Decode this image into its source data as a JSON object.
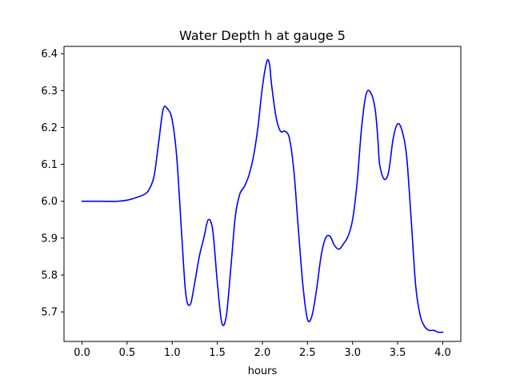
{
  "chart_data": {
    "type": "line",
    "title": "Water Depth h at gauge 5",
    "xlabel": "hours",
    "ylabel": "",
    "xlim": [
      -0.2,
      4.2
    ],
    "ylim": [
      5.62,
      6.42
    ],
    "xticks": [
      0.0,
      0.5,
      1.0,
      1.5,
      2.0,
      2.5,
      3.0,
      3.5,
      4.0
    ],
    "xtick_labels": [
      "0.0",
      "0.5",
      "1.0",
      "1.5",
      "2.0",
      "2.5",
      "3.0",
      "3.5",
      "4.0"
    ],
    "yticks": [
      5.7,
      5.8,
      5.9,
      6.0,
      6.1,
      6.2,
      6.3,
      6.4
    ],
    "ytick_labels": [
      "5.7",
      "5.8",
      "5.9",
      "6.0",
      "6.1",
      "6.2",
      "6.3",
      "6.4"
    ],
    "grid": false,
    "series": [
      {
        "color": "#0000ff",
        "x": [
          0.0,
          0.2,
          0.4,
          0.5,
          0.6,
          0.7,
          0.75,
          0.8,
          0.85,
          0.9,
          0.95,
          1.0,
          1.05,
          1.1,
          1.15,
          1.2,
          1.25,
          1.3,
          1.35,
          1.4,
          1.45,
          1.5,
          1.55,
          1.6,
          1.65,
          1.7,
          1.75,
          1.8,
          1.85,
          1.9,
          1.95,
          2.0,
          2.05,
          2.08,
          2.1,
          2.15,
          2.2,
          2.25,
          2.3,
          2.35,
          2.4,
          2.45,
          2.5,
          2.55,
          2.6,
          2.65,
          2.7,
          2.75,
          2.8,
          2.85,
          2.9,
          2.95,
          3.0,
          3.05,
          3.1,
          3.15,
          3.2,
          3.25,
          3.28,
          3.3,
          3.35,
          3.4,
          3.45,
          3.5,
          3.55,
          3.6,
          3.65,
          3.7,
          3.75,
          3.8,
          3.85,
          3.9,
          3.95,
          4.0
        ],
        "y": [
          6.0,
          6.0,
          6.0,
          6.003,
          6.01,
          6.02,
          6.035,
          6.07,
          6.16,
          6.25,
          6.25,
          6.22,
          6.12,
          5.93,
          5.75,
          5.72,
          5.78,
          5.85,
          5.9,
          5.95,
          5.92,
          5.78,
          5.67,
          5.69,
          5.82,
          5.96,
          6.02,
          6.04,
          6.07,
          6.12,
          6.2,
          6.31,
          6.38,
          6.37,
          6.32,
          6.23,
          6.19,
          6.19,
          6.17,
          6.08,
          5.92,
          5.77,
          5.68,
          5.69,
          5.76,
          5.85,
          5.9,
          5.905,
          5.88,
          5.87,
          5.885,
          5.905,
          5.95,
          6.05,
          6.2,
          6.29,
          6.295,
          6.25,
          6.17,
          6.1,
          6.06,
          6.08,
          6.17,
          6.21,
          6.19,
          6.12,
          5.95,
          5.77,
          5.69,
          5.66,
          5.65,
          5.65,
          5.645,
          5.645
        ]
      }
    ]
  }
}
